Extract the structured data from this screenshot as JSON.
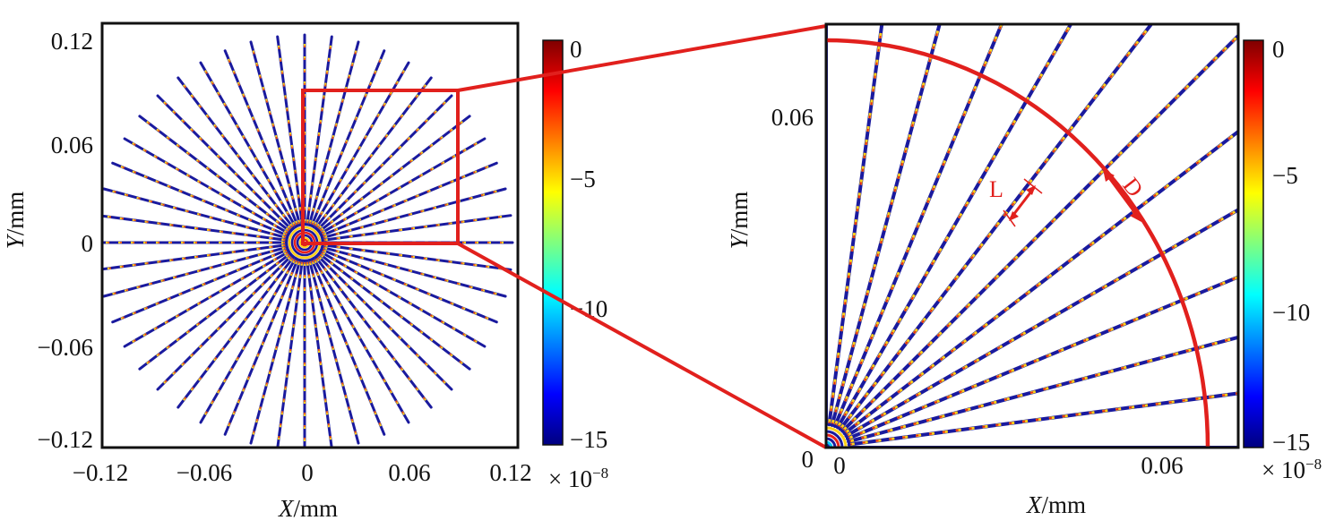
{
  "colors": {
    "highlight": "#e1201d",
    "frame": "#111111",
    "colormap": [
      "#00007f",
      "#0000ff",
      "#007fff",
      "#00ffff",
      "#7fff7f",
      "#ffff00",
      "#ff7f00",
      "#ff0000",
      "#7f0000"
    ]
  },
  "left_panel": {
    "xlabel_var": "X",
    "xlabel_unit": "/mm",
    "ylabel_var": "Y",
    "ylabel_unit": "/mm",
    "x_ticks": [
      "−0.12",
      "−0.06",
      "0",
      "0.06",
      "0.12"
    ],
    "y_ticks": [
      "0.12",
      "0.06",
      "0",
      "−0.06",
      "−0.12"
    ],
    "xlim": [
      -0.12,
      0.12
    ],
    "ylim": [
      -0.12,
      0.12
    ],
    "spoke_count": 48,
    "zoom_box": {
      "x": [
        0,
        0.088
      ],
      "y": [
        0,
        0.088
      ]
    }
  },
  "left_colorbar": {
    "ticks": [
      "0",
      "−5",
      "−10",
      "−15"
    ],
    "values": [
      0,
      -5,
      -10,
      -15
    ],
    "range": [
      -15,
      0
    ],
    "multiplier_prefix": "× 10",
    "multiplier_exp": "−8"
  },
  "right_panel": {
    "xlabel_var": "X",
    "xlabel_unit": "/mm",
    "ylabel_var": "Y",
    "ylabel_unit": "/mm",
    "x_ticks": [
      "0",
      "0.06"
    ],
    "y_ticks": [
      "0.06"
    ],
    "origin_label": "0",
    "xlim": [
      0,
      0.088
    ],
    "ylim": [
      0,
      0.088
    ],
    "spoke_count": 12,
    "arc_radius": 0.082,
    "label_L": "L",
    "label_D": "D"
  },
  "right_colorbar": {
    "ticks": [
      "0",
      "−5",
      "−10",
      "−15"
    ],
    "values": [
      0,
      -5,
      -10,
      -15
    ],
    "range": [
      -15,
      0
    ],
    "multiplier_prefix": "× 10",
    "multiplier_exp": "−8"
  }
}
